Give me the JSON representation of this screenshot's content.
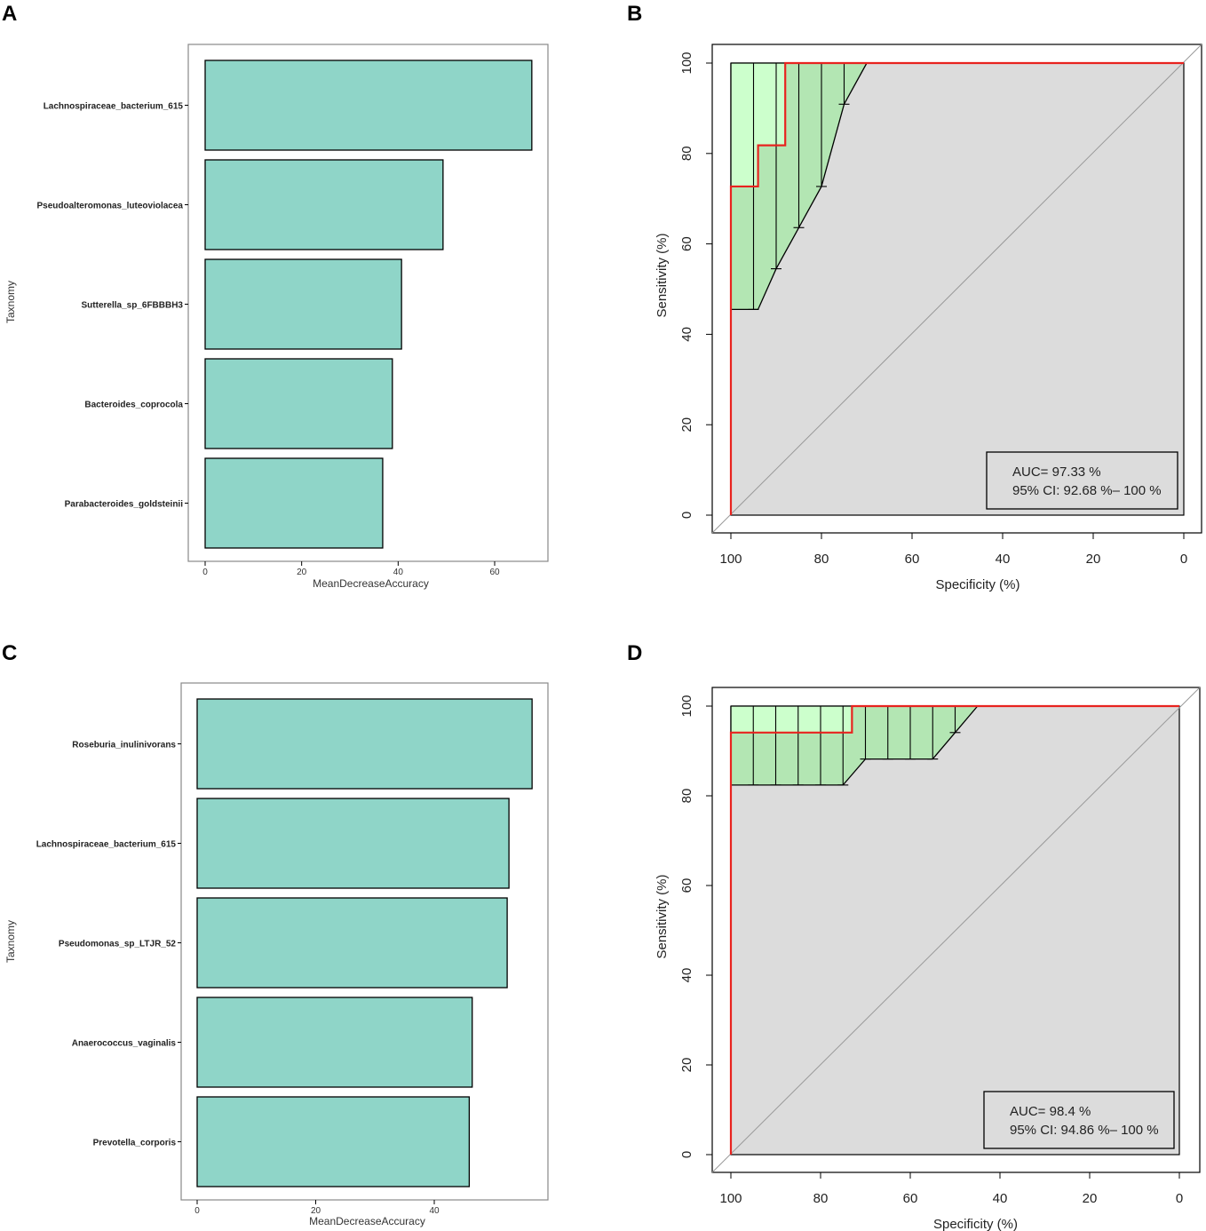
{
  "panels": {
    "A": "A",
    "B": "B",
    "C": "C",
    "D": "D"
  },
  "chart_data": [
    {
      "panel": "A",
      "type": "bar",
      "orientation": "horizontal",
      "categories": [
        "Lachnospiraceae_bacterium_615",
        "Pseudoalteromonas_luteoviolacea",
        "Sutterella_sp_6FBBBH3",
        "Bacteroides_coprocola",
        "Parabacteroides_goldsteinii"
      ],
      "values": [
        67.7,
        49.3,
        40.7,
        38.8,
        36.8
      ],
      "xlabel": "MeanDecreaseAccuracy",
      "ylabel": "Taxnomy",
      "xticks": [
        0,
        20,
        40,
        60
      ],
      "bar_color": "#8fd5c8"
    },
    {
      "panel": "B",
      "type": "line",
      "subtype": "roc",
      "xlabel": "Specificity (%)",
      "ylabel": "Sensitivity (%)",
      "xlim": [
        100,
        0
      ],
      "ylim": [
        0,
        100
      ],
      "xticks": [
        100,
        80,
        60,
        40,
        20,
        0
      ],
      "yticks": [
        0,
        20,
        40,
        60,
        80,
        100
      ],
      "roc": [
        [
          100,
          0
        ],
        [
          100,
          72.7
        ],
        [
          94,
          72.7
        ],
        [
          94,
          81.8
        ],
        [
          88,
          81.8
        ],
        [
          88,
          100
        ],
        [
          0,
          100
        ]
      ],
      "ci_upper": [
        [
          100,
          100
        ],
        [
          70,
          100
        ]
      ],
      "ci_lower": [
        [
          100,
          45.5
        ],
        [
          94,
          45.5
        ],
        [
          90,
          54.5
        ],
        [
          85,
          63.6
        ],
        [
          80,
          72.7
        ],
        [
          75,
          90.9
        ],
        [
          70,
          100
        ]
      ],
      "ci_bar_x": [
        95,
        90,
        85,
        80,
        75
      ],
      "ci_bars": [
        [
          95,
          45.5,
          100
        ],
        [
          90,
          54.5,
          100
        ],
        [
          85,
          63.6,
          100
        ],
        [
          80,
          72.7,
          100
        ],
        [
          75,
          90.9,
          100
        ]
      ],
      "legend_position": "bottom-right",
      "auc_text": "AUC= 97.33 %",
      "ci_text": "95% CI: 92.68 %– 100 %",
      "colors": {
        "roc": "#e8231f",
        "ci_band": "#b3e6b3",
        "ci_band_light": "#ccffcc",
        "background": "#dcdcdc"
      }
    },
    {
      "panel": "C",
      "type": "bar",
      "orientation": "horizontal",
      "categories": [
        "Roseburia_inulinivorans",
        "Lachnospiraceae_bacterium_615",
        "Pseudomonas_sp_LTJR_52",
        "Anaerococcus_vaginalis",
        "Prevotella_corporis"
      ],
      "values": [
        56.5,
        52.6,
        52.3,
        46.4,
        45.9
      ],
      "xlabel": "MeanDecreaseAccuracy",
      "ylabel": "Taxnomy",
      "xticks": [
        0,
        20,
        40
      ],
      "bar_color": "#8fd5c8"
    },
    {
      "panel": "D",
      "type": "line",
      "subtype": "roc",
      "xlabel": "Specificity (%)",
      "ylabel": "Sensitivity (%)",
      "xlim": [
        100,
        0
      ],
      "ylim": [
        0,
        100
      ],
      "xticks": [
        100,
        80,
        60,
        40,
        20,
        0
      ],
      "yticks": [
        0,
        20,
        40,
        60,
        80,
        100
      ],
      "roc": [
        [
          100,
          0
        ],
        [
          100,
          94.1
        ],
        [
          73,
          94.1
        ],
        [
          73,
          100
        ],
        [
          0,
          100
        ]
      ],
      "ci_upper": [
        [
          100,
          100
        ],
        [
          45,
          100
        ]
      ],
      "ci_lower": [
        [
          100,
          82.4
        ],
        [
          75,
          82.4
        ],
        [
          70,
          88.2
        ],
        [
          55,
          88.2
        ],
        [
          50,
          94.1
        ],
        [
          45,
          100
        ]
      ],
      "ci_bar_x": [
        95,
        90,
        85,
        80,
        75,
        70,
        65,
        60,
        55,
        50
      ],
      "ci_bars": [
        [
          95,
          82.4,
          100
        ],
        [
          90,
          82.4,
          100
        ],
        [
          85,
          82.4,
          100
        ],
        [
          80,
          82.4,
          100
        ],
        [
          75,
          82.4,
          100
        ],
        [
          70,
          88.2,
          100
        ],
        [
          65,
          88.2,
          100
        ],
        [
          60,
          88.2,
          100
        ],
        [
          55,
          88.2,
          100
        ],
        [
          50,
          94.1,
          100
        ]
      ],
      "legend_position": "bottom-right",
      "auc_text": "AUC= 98.4 %",
      "ci_text": "95% CI: 94.86 %– 100 %",
      "colors": {
        "roc": "#e8231f",
        "ci_band": "#b3e6b3",
        "ci_band_light": "#ccffcc",
        "background": "#dcdcdc"
      }
    }
  ]
}
